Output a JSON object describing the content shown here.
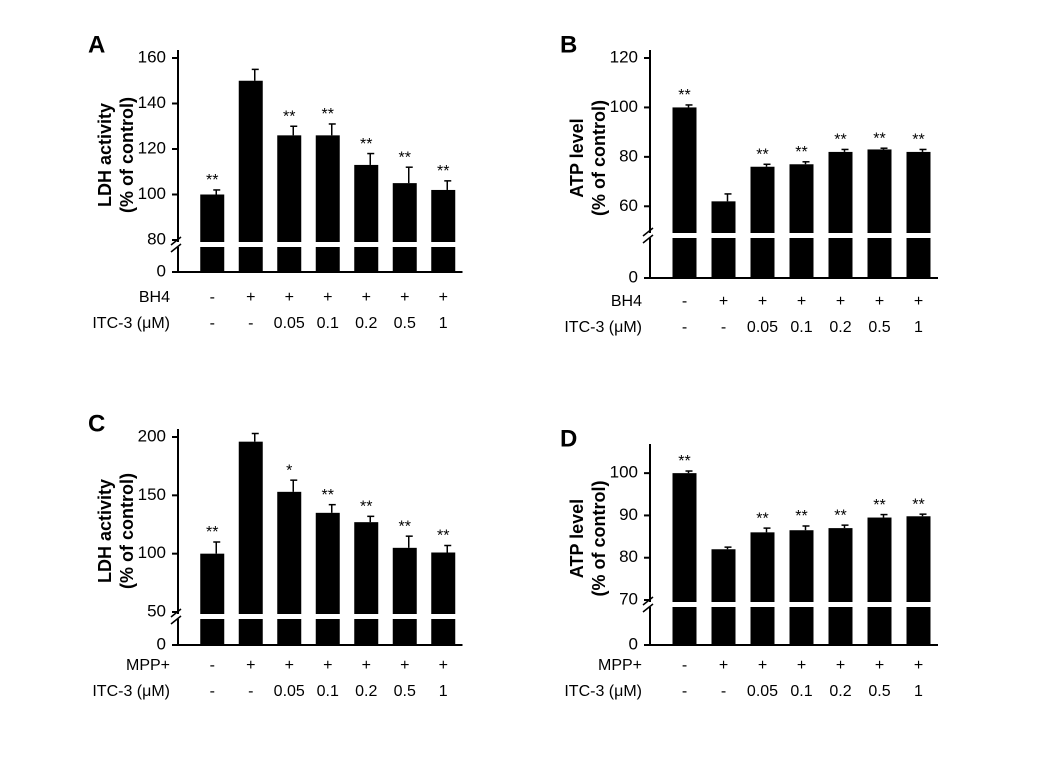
{
  "chart_data": [
    {
      "type": "bar",
      "panel": "A",
      "ylabel": [
        "LDH activity",
        "(% of control)"
      ],
      "color": "#000000",
      "treatments": [
        {
          "name": "BH4",
          "levels": [
            "-",
            "+",
            "+",
            "+",
            "+",
            "+",
            "+"
          ]
        },
        {
          "name": "ITC-3 (μM)",
          "levels": [
            "-",
            "-",
            "0.05",
            "0.1",
            "0.2",
            "0.5",
            "1"
          ]
        }
      ],
      "values": [
        100,
        150,
        126,
        126,
        113,
        105,
        102
      ],
      "errors": [
        2,
        5,
        4,
        5,
        5,
        7,
        4
      ],
      "annotations": [
        "**",
        null,
        "**",
        "**",
        "**",
        "**",
        "**"
      ],
      "ylim": [
        0,
        160
      ],
      "ybreak": 80,
      "yticks": [
        0,
        80,
        100,
        120,
        140,
        160
      ]
    },
    {
      "type": "bar",
      "panel": "B",
      "ylabel": [
        "ATP level",
        "(% of control)"
      ],
      "color": "#000000",
      "treatments": [
        {
          "name": "BH4",
          "levels": [
            "-",
            "+",
            "+",
            "+",
            "+",
            "+",
            "+"
          ]
        },
        {
          "name": "ITC-3 (μM)",
          "levels": [
            "-",
            "-",
            "0.05",
            "0.1",
            "0.2",
            "0.5",
            "1"
          ]
        }
      ],
      "values": [
        100,
        62,
        76,
        77,
        82,
        83,
        82
      ],
      "errors": [
        1,
        3,
        1,
        1,
        1,
        0.5,
        1
      ],
      "annotations": [
        "**",
        null,
        "**",
        "**",
        "**",
        "**",
        "**"
      ],
      "ylim": [
        0,
        120
      ],
      "ybreak": 50,
      "yticks": [
        0,
        60,
        80,
        100,
        120
      ]
    },
    {
      "type": "bar",
      "panel": "C",
      "ylabel": [
        "LDH activity",
        "(% of control)"
      ],
      "color": "#000000",
      "treatments": [
        {
          "name": "MPP+",
          "levels": [
            "-",
            "+",
            "+",
            "+",
            "+",
            "+",
            "+"
          ]
        },
        {
          "name": "ITC-3 (μM)",
          "levels": [
            "-",
            "-",
            "0.05",
            "0.1",
            "0.2",
            "0.5",
            "1"
          ]
        }
      ],
      "values": [
        100,
        196,
        153,
        135,
        127,
        105,
        101
      ],
      "errors": [
        10,
        7,
        10,
        7,
        5,
        10,
        6
      ],
      "annotations": [
        "**",
        null,
        "*",
        "**",
        "**",
        "**",
        "**"
      ],
      "ylim": [
        0,
        200
      ],
      "ybreak": 50,
      "yticks": [
        0,
        50,
        100,
        150,
        200
      ]
    },
    {
      "type": "bar",
      "panel": "D",
      "ylabel": [
        "ATP level",
        "(% of control)"
      ],
      "color": "#000000",
      "treatments": [
        {
          "name": "MPP+",
          "levels": [
            "-",
            "+",
            "+",
            "+",
            "+",
            "+",
            "+"
          ]
        },
        {
          "name": "ITC-3 (μM)",
          "levels": [
            "-",
            "-",
            "0.05",
            "0.1",
            "0.2",
            "0.5",
            "1"
          ]
        }
      ],
      "values": [
        100,
        82,
        86,
        86.5,
        87,
        89.5,
        89.8
      ],
      "errors": [
        0.5,
        0.5,
        1,
        1,
        0.7,
        0.7,
        0.5
      ],
      "annotations": [
        "**",
        null,
        "**",
        "**",
        "**",
        "**",
        "**"
      ],
      "ylim": [
        0,
        105
      ],
      "ybreak": 70,
      "yticks": [
        0,
        70,
        80,
        90,
        100
      ]
    }
  ]
}
